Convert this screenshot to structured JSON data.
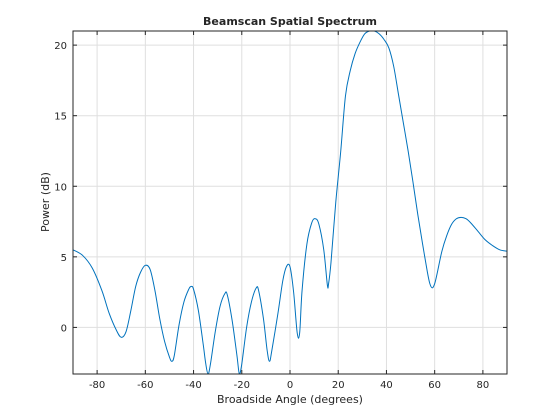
{
  "chart_data": {
    "type": "line",
    "title": "Beamscan Spatial Spectrum",
    "xlabel": "Broadside Angle (degrees)",
    "ylabel": "Power (dB)",
    "xlim": [
      -90,
      90
    ],
    "ylim": [
      -3.3,
      21
    ],
    "xticks": [
      -80,
      -60,
      -40,
      -20,
      0,
      20,
      40,
      60,
      80
    ],
    "yticks": [
      0,
      5,
      10,
      15,
      20
    ],
    "grid": true,
    "line_color": "#0072bd",
    "series": [
      {
        "points": [
          [
            -90,
            5.5
          ],
          [
            -86,
            5.1
          ],
          [
            -82,
            4.2
          ],
          [
            -78,
            2.6
          ],
          [
            -75,
            1.0
          ],
          [
            -72,
            -0.2
          ],
          [
            -70,
            -0.7
          ],
          [
            -68,
            -0.3
          ],
          [
            -66,
            1.2
          ],
          [
            -64,
            2.9
          ],
          [
            -62,
            3.9
          ],
          [
            -60,
            4.4
          ],
          [
            -58,
            4.1
          ],
          [
            -56,
            2.6
          ],
          [
            -54,
            0.6
          ],
          [
            -52,
            -1.0
          ],
          [
            -50,
            -2.1
          ],
          [
            -49,
            -2.4
          ],
          [
            -48,
            -2.0
          ],
          [
            -46,
            0.2
          ],
          [
            -44,
            1.8
          ],
          [
            -42,
            2.7
          ],
          [
            -41,
            2.9
          ],
          [
            -40,
            2.7
          ],
          [
            -38,
            1.2
          ],
          [
            -36,
            -1.2
          ],
          [
            -35,
            -2.5
          ],
          [
            -34,
            -3.3
          ],
          [
            -33,
            -2.6
          ],
          [
            -31,
            -0.3
          ],
          [
            -29,
            1.5
          ],
          [
            -27,
            2.4
          ],
          [
            -26,
            2.3
          ],
          [
            -24,
            0.5
          ],
          [
            -22,
            -2.0
          ],
          [
            -21,
            -3.3
          ],
          [
            -20,
            -2.6
          ],
          [
            -18,
            0.0
          ],
          [
            -16,
            1.8
          ],
          [
            -14,
            2.8
          ],
          [
            -13,
            2.6
          ],
          [
            -11,
            0.6
          ],
          [
            -9.5,
            -1.6
          ],
          [
            -8.5,
            -2.4
          ],
          [
            -7.5,
            -1.6
          ],
          [
            -5,
            1.0
          ],
          [
            -3,
            3.3
          ],
          [
            -1.5,
            4.3
          ],
          [
            0,
            4.3
          ],
          [
            1.5,
            2.5
          ],
          [
            3,
            -0.4
          ],
          [
            4,
            -0.4
          ],
          [
            5,
            2.6
          ],
          [
            7,
            5.9
          ],
          [
            9,
            7.4
          ],
          [
            10.5,
            7.7
          ],
          [
            12,
            7.3
          ],
          [
            14,
            5.5
          ],
          [
            15.5,
            3.0
          ],
          [
            16,
            3.1
          ],
          [
            17,
            4.6
          ],
          [
            19,
            8.9
          ],
          [
            21,
            12.4
          ],
          [
            23,
            16.4
          ],
          [
            25,
            18.2
          ],
          [
            27,
            19.4
          ],
          [
            29,
            20.2
          ],
          [
            31,
            20.8
          ],
          [
            33,
            21.0
          ],
          [
            35,
            21.0
          ],
          [
            37,
            20.8
          ],
          [
            39,
            20.4
          ],
          [
            41,
            19.8
          ],
          [
            43,
            18.5
          ],
          [
            45,
            16.5
          ],
          [
            47,
            14.5
          ],
          [
            49,
            12.5
          ],
          [
            51,
            10.3
          ],
          [
            53,
            8.0
          ],
          [
            55,
            5.9
          ],
          [
            57,
            3.9
          ],
          [
            58,
            3.1
          ],
          [
            59,
            2.8
          ],
          [
            60,
            3.1
          ],
          [
            61,
            3.8
          ],
          [
            63,
            5.4
          ],
          [
            65,
            6.5
          ],
          [
            67,
            7.3
          ],
          [
            69,
            7.7
          ],
          [
            71,
            7.8
          ],
          [
            73,
            7.7
          ],
          [
            75,
            7.4
          ],
          [
            78,
            6.8
          ],
          [
            81,
            6.2
          ],
          [
            84,
            5.8
          ],
          [
            87,
            5.5
          ],
          [
            90,
            5.4
          ]
        ]
      }
    ]
  }
}
